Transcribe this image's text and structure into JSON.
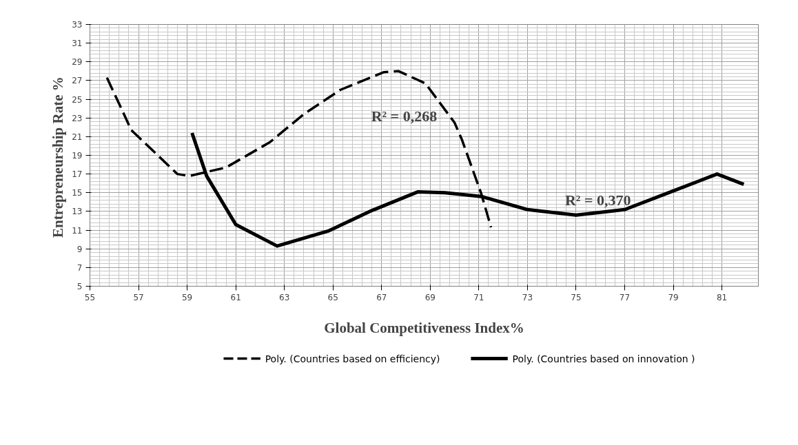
{
  "chart_data": {
    "type": "line",
    "xlabel": "Global Competitiveness Index%",
    "ylabel": "Entrepreneurship  Rate %",
    "xlim": [
      55,
      82.5
    ],
    "xticks": [
      55,
      57,
      59,
      61,
      63,
      65,
      67,
      69,
      71,
      73,
      75,
      77,
      79,
      81
    ],
    "ylim": [
      5,
      33
    ],
    "yticks": [
      5,
      7,
      9,
      11,
      13,
      15,
      17,
      19,
      21,
      23,
      25,
      27,
      29,
      31,
      33
    ],
    "grid": true,
    "legend": "bottom",
    "marker": "none",
    "series": [
      {
        "name": "Poly. (Countries based on efficiency)",
        "color": "#000000",
        "line_style": "dashed",
        "x": [
          55.7,
          56.4,
          56.7,
          58.6,
          59.1,
          60.6,
          62.4,
          63.8,
          65.3,
          67.1,
          67.7,
          68.8,
          70.0,
          70.3,
          71.1,
          71.5
        ],
        "values": [
          27.3,
          23.4,
          21.7,
          17.0,
          16.8,
          17.7,
          20.4,
          23.4,
          26.0,
          27.9,
          28.0,
          26.7,
          22.5,
          20.7,
          14.9,
          11.3
        ]
      },
      {
        "name": "Poly. (Countries based on innovation )",
        "color": "#000000",
        "line_style": "solid",
        "x": [
          59.2,
          59.8,
          61.0,
          62.7,
          64.8,
          66.6,
          68.5,
          69.6,
          71.1,
          73.0,
          75.0,
          77.0,
          79.0,
          80.8,
          81.9
        ],
        "values": [
          21.4,
          16.8,
          11.6,
          9.3,
          10.9,
          13.1,
          15.1,
          15.0,
          14.6,
          13.2,
          12.6,
          13.2,
          15.2,
          17.0,
          15.9
        ]
      }
    ],
    "annotations": [
      "R² = 0,268",
      "R² = 0,370"
    ]
  }
}
